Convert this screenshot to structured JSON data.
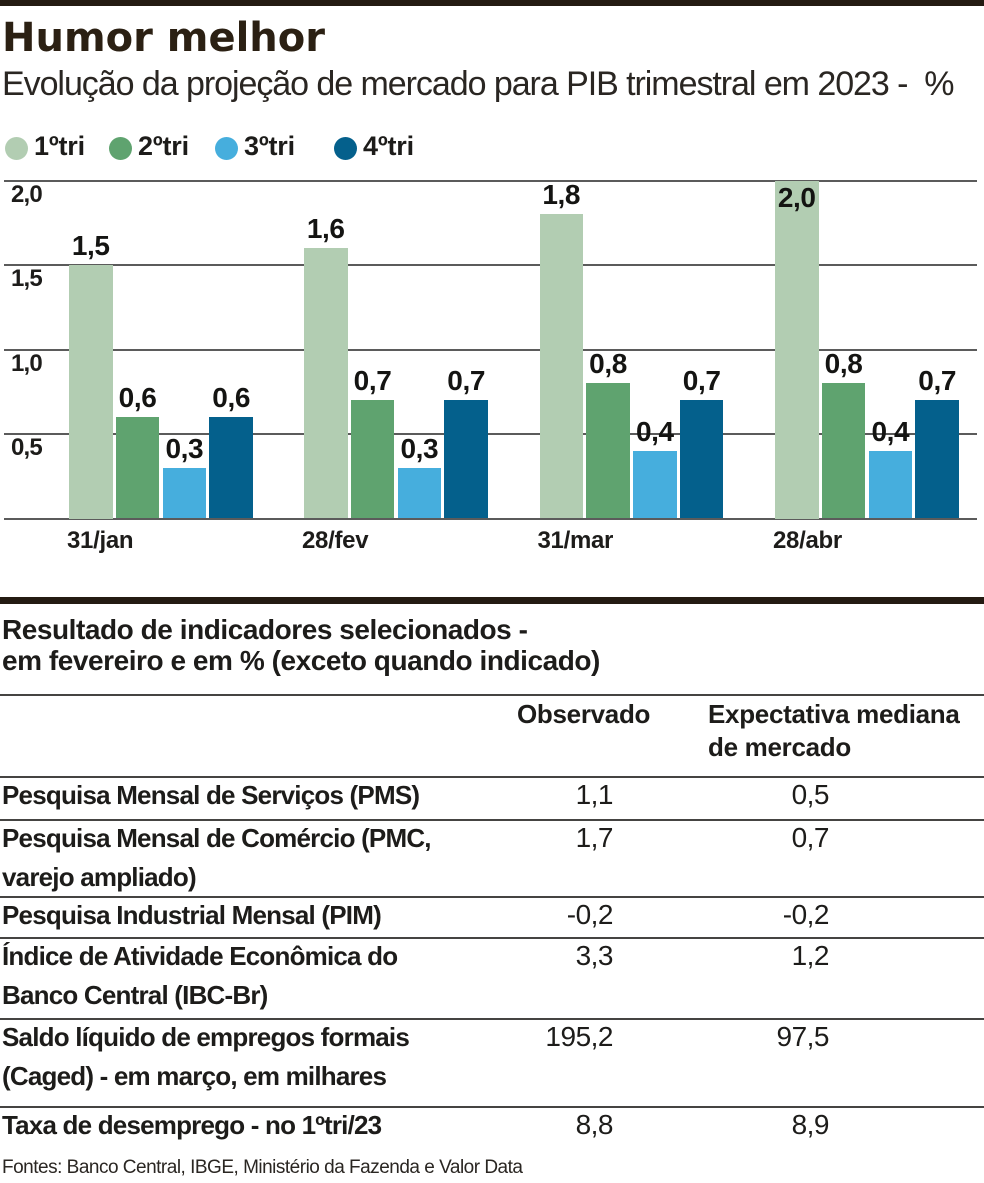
{
  "header": {
    "title": "Humor melhor",
    "subtitle": "Evolução da projeção de mercado para PIB trimestral em 2023 -  %"
  },
  "chart_data": {
    "type": "bar",
    "title": "Humor melhor",
    "subtitle": "Evolução da projeção de mercado para PIB trimestral em 2023 - %",
    "unit": "%",
    "categories": [
      "31/jan",
      "28/fev",
      "31/mar",
      "28/abr"
    ],
    "series": [
      {
        "name": "1ºtri",
        "color": "#b2cdb2",
        "values": [
          1.5,
          1.6,
          1.8,
          2.0
        ]
      },
      {
        "name": "2ºtri",
        "color": "#5fa36f",
        "values": [
          0.6,
          0.7,
          0.8,
          0.8
        ]
      },
      {
        "name": "3ºtri",
        "color": "#46aedd",
        "values": [
          0.3,
          0.3,
          0.4,
          0.4
        ]
      },
      {
        "name": "4ºtri",
        "color": "#04608c",
        "values": [
          0.6,
          0.7,
          0.7,
          0.7
        ]
      }
    ],
    "ylim": [
      0,
      2
    ],
    "ytick_values": [
      2,
      1.5,
      1,
      0.5
    ],
    "ytick_labels": [
      "2,0",
      "1,5",
      "1,0",
      "0,5"
    ],
    "grid": true,
    "legend_position": "top",
    "decimal_separator": ","
  },
  "table": {
    "title": "Resultado de indicadores selecionados -\nem fevereiro e em % (exceto quando indicado)",
    "columns": [
      "Observado",
      "Expectativa mediana\nde mercado"
    ],
    "rows": [
      {
        "label": "Pesquisa Mensal de Serviços (PMS)",
        "observado": "1,1",
        "expectativa": "0,5"
      },
      {
        "label": "Pesquisa Mensal de Comércio (PMC,\nvarejo ampliado)",
        "observado": "1,7",
        "expectativa": "0,7"
      },
      {
        "label": "Pesquisa Industrial Mensal (PIM)",
        "observado": "-0,2",
        "expectativa": "-0,2"
      },
      {
        "label": "Índice de Atividade Econômica do\nBanco Central (IBC-Br)",
        "observado": "3,3",
        "expectativa": "1,2"
      },
      {
        "label": "Saldo líquido de empregos formais\n(Caged) - em março, em milhares",
        "observado": "195,2",
        "expectativa": "97,5"
      },
      {
        "label": "Taxa de desemprego - no 1ºtri/23",
        "observado": "8,8",
        "expectativa": "8,9"
      }
    ]
  },
  "footer": {
    "source": "Fontes: Banco Central, IBGE, Ministério da Fazenda e Valor Data"
  },
  "colors": {
    "accent_dark": "#241b12",
    "series_q1": "#b2cdb2",
    "series_q2": "#5fa36f",
    "series_q3": "#46aedd",
    "series_q4": "#04608c",
    "gridline": "#5b5b5b",
    "table_rule": "#454442"
  }
}
